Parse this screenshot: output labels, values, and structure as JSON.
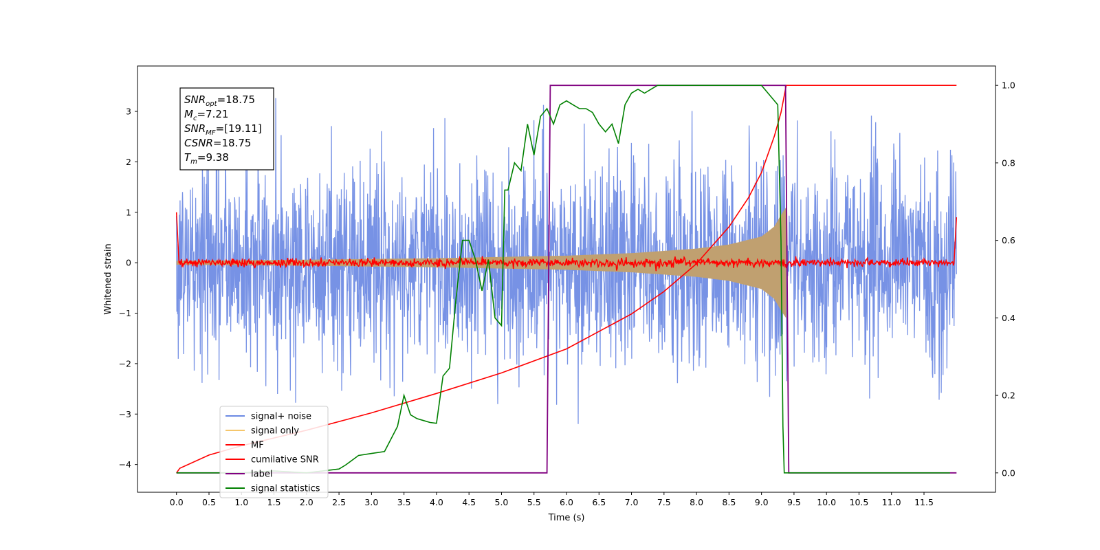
{
  "chart_data": {
    "type": "line",
    "xlabel": "Time (s)",
    "ylabel": "Whitened strain",
    "y2label": "",
    "xlim": [
      -0.6,
      12.6
    ],
    "ylim": [
      -4.55,
      3.9
    ],
    "y2lim": [
      -0.05,
      1.05
    ],
    "xticks": [
      0.0,
      0.5,
      1.0,
      1.5,
      2.0,
      2.5,
      3.0,
      3.5,
      4.0,
      4.5,
      5.0,
      5.5,
      6.0,
      6.5,
      7.0,
      7.5,
      8.0,
      8.5,
      9.0,
      9.5,
      10.0,
      10.5,
      11.0,
      11.5
    ],
    "xtick_labels": [
      "0.0",
      "0.5",
      "1.0",
      "1.5",
      "2.0",
      "2.5",
      "3.0",
      "3.5",
      "4.0",
      "4.5",
      "5.0",
      "5.5",
      "6.0",
      "6.5",
      "7.0",
      "7.5",
      "8.0",
      "8.5",
      "9.0",
      "9.5",
      "10.0",
      "10.5",
      "11.0",
      "11.5"
    ],
    "yticks": [
      -4,
      -3,
      -2,
      -1,
      0,
      1,
      2,
      3
    ],
    "ytick_labels": [
      "−4",
      "−3",
      "−2",
      "−1",
      "0",
      "1",
      "2",
      "3"
    ],
    "y2ticks": [
      0.0,
      0.2,
      0.4,
      0.6,
      0.8,
      1.0
    ],
    "y2tick_labels": [
      "0.0",
      "0.2",
      "0.4",
      "0.6",
      "0.8",
      "1.0"
    ],
    "legend_position": "lower-left",
    "grid": false,
    "annotation": {
      "lines": [
        {
          "main": "SNR",
          "sub": "opt",
          "rest": "=18.75"
        },
        {
          "main": "M",
          "sub": "c",
          "rest": "=7.21"
        },
        {
          "main": "SNR",
          "sub": "MF",
          "rest": "=[19.11]"
        },
        {
          "main": "CSNR",
          "sub": "",
          "rest": "=18.75"
        },
        {
          "main": "T",
          "sub": "m",
          "rest": "=9.38"
        }
      ]
    },
    "series": [
      {
        "name": "signal+ noise",
        "axis": "left",
        "color": "#6b89e3",
        "description_values": {
          "x_start": 0.0,
          "x_end": 12.0,
          "noise_std": 1.0,
          "merger_time": 9.38
        }
      },
      {
        "name": "signal only",
        "axis": "left",
        "color": "#f5c66b",
        "envelope": {
          "x": [
            0.0,
            2.0,
            4.0,
            6.0,
            7.0,
            8.0,
            8.5,
            9.0,
            9.2,
            9.3,
            9.38
          ],
          "amp": [
            0.04,
            0.06,
            0.09,
            0.14,
            0.19,
            0.28,
            0.36,
            0.52,
            0.72,
            0.95,
            1.1
          ]
        }
      },
      {
        "name": "MF",
        "axis": "left",
        "color": "#ff0000",
        "description_values": {
          "baseline": 0.0,
          "edge_value": 1.0,
          "noise_std": 0.04
        }
      },
      {
        "name": "cumilative SNR",
        "axis": "right",
        "color": "#ff0000",
        "x": [
          0.0,
          0.05,
          0.5,
          1.0,
          2.0,
          3.0,
          4.0,
          5.0,
          6.0,
          7.0,
          7.5,
          8.0,
          8.5,
          8.8,
          9.0,
          9.2,
          9.3,
          9.38,
          12.0
        ],
        "values": [
          0.0,
          0.012,
          0.046,
          0.07,
          0.11,
          0.155,
          0.205,
          0.258,
          0.32,
          0.41,
          0.468,
          0.54,
          0.635,
          0.71,
          0.775,
          0.87,
          0.93,
          1.0,
          1.0
        ]
      },
      {
        "name": "label",
        "axis": "right",
        "color": "#800080",
        "x": [
          0.0,
          5.7,
          5.75,
          9.37,
          9.42,
          12.0
        ],
        "values": [
          0.0,
          0.0,
          1.0,
          1.0,
          0.0,
          0.0
        ]
      },
      {
        "name": "signal statistics",
        "axis": "right",
        "color": "#008000",
        "x": [
          0.0,
          0.5,
          1.0,
          1.5,
          2.0,
          2.5,
          2.6,
          2.8,
          3.0,
          3.2,
          3.4,
          3.5,
          3.6,
          3.7,
          3.8,
          3.9,
          4.0,
          4.1,
          4.2,
          4.3,
          4.4,
          4.5,
          4.6,
          4.7,
          4.8,
          4.9,
          5.0,
          5.05,
          5.1,
          5.2,
          5.3,
          5.4,
          5.5,
          5.6,
          5.7,
          5.8,
          5.9,
          6.0,
          6.1,
          6.2,
          6.3,
          6.4,
          6.5,
          6.6,
          6.7,
          6.8,
          6.9,
          7.0,
          7.1,
          7.2,
          7.3,
          7.4,
          7.5,
          8.0,
          8.5,
          9.0,
          9.25,
          9.3,
          9.33,
          9.35,
          9.4,
          9.45,
          10.0,
          11.0,
          11.9
        ],
        "values": [
          0.0,
          0.0,
          0.0,
          0.005,
          0.0,
          0.01,
          0.02,
          0.045,
          0.05,
          0.055,
          0.12,
          0.2,
          0.15,
          0.14,
          0.135,
          0.13,
          0.128,
          0.25,
          0.27,
          0.45,
          0.6,
          0.6,
          0.55,
          0.47,
          0.55,
          0.4,
          0.38,
          0.73,
          0.73,
          0.8,
          0.78,
          0.9,
          0.82,
          0.92,
          0.94,
          0.9,
          0.95,
          0.96,
          0.95,
          0.94,
          0.94,
          0.93,
          0.9,
          0.88,
          0.9,
          0.85,
          0.95,
          0.98,
          0.99,
          0.98,
          0.99,
          1.0,
          1.0,
          1.0,
          1.0,
          1.0,
          0.95,
          0.6,
          0.12,
          0.0,
          0.0,
          0.0,
          0.0,
          0.0,
          0.0
        ]
      }
    ]
  }
}
